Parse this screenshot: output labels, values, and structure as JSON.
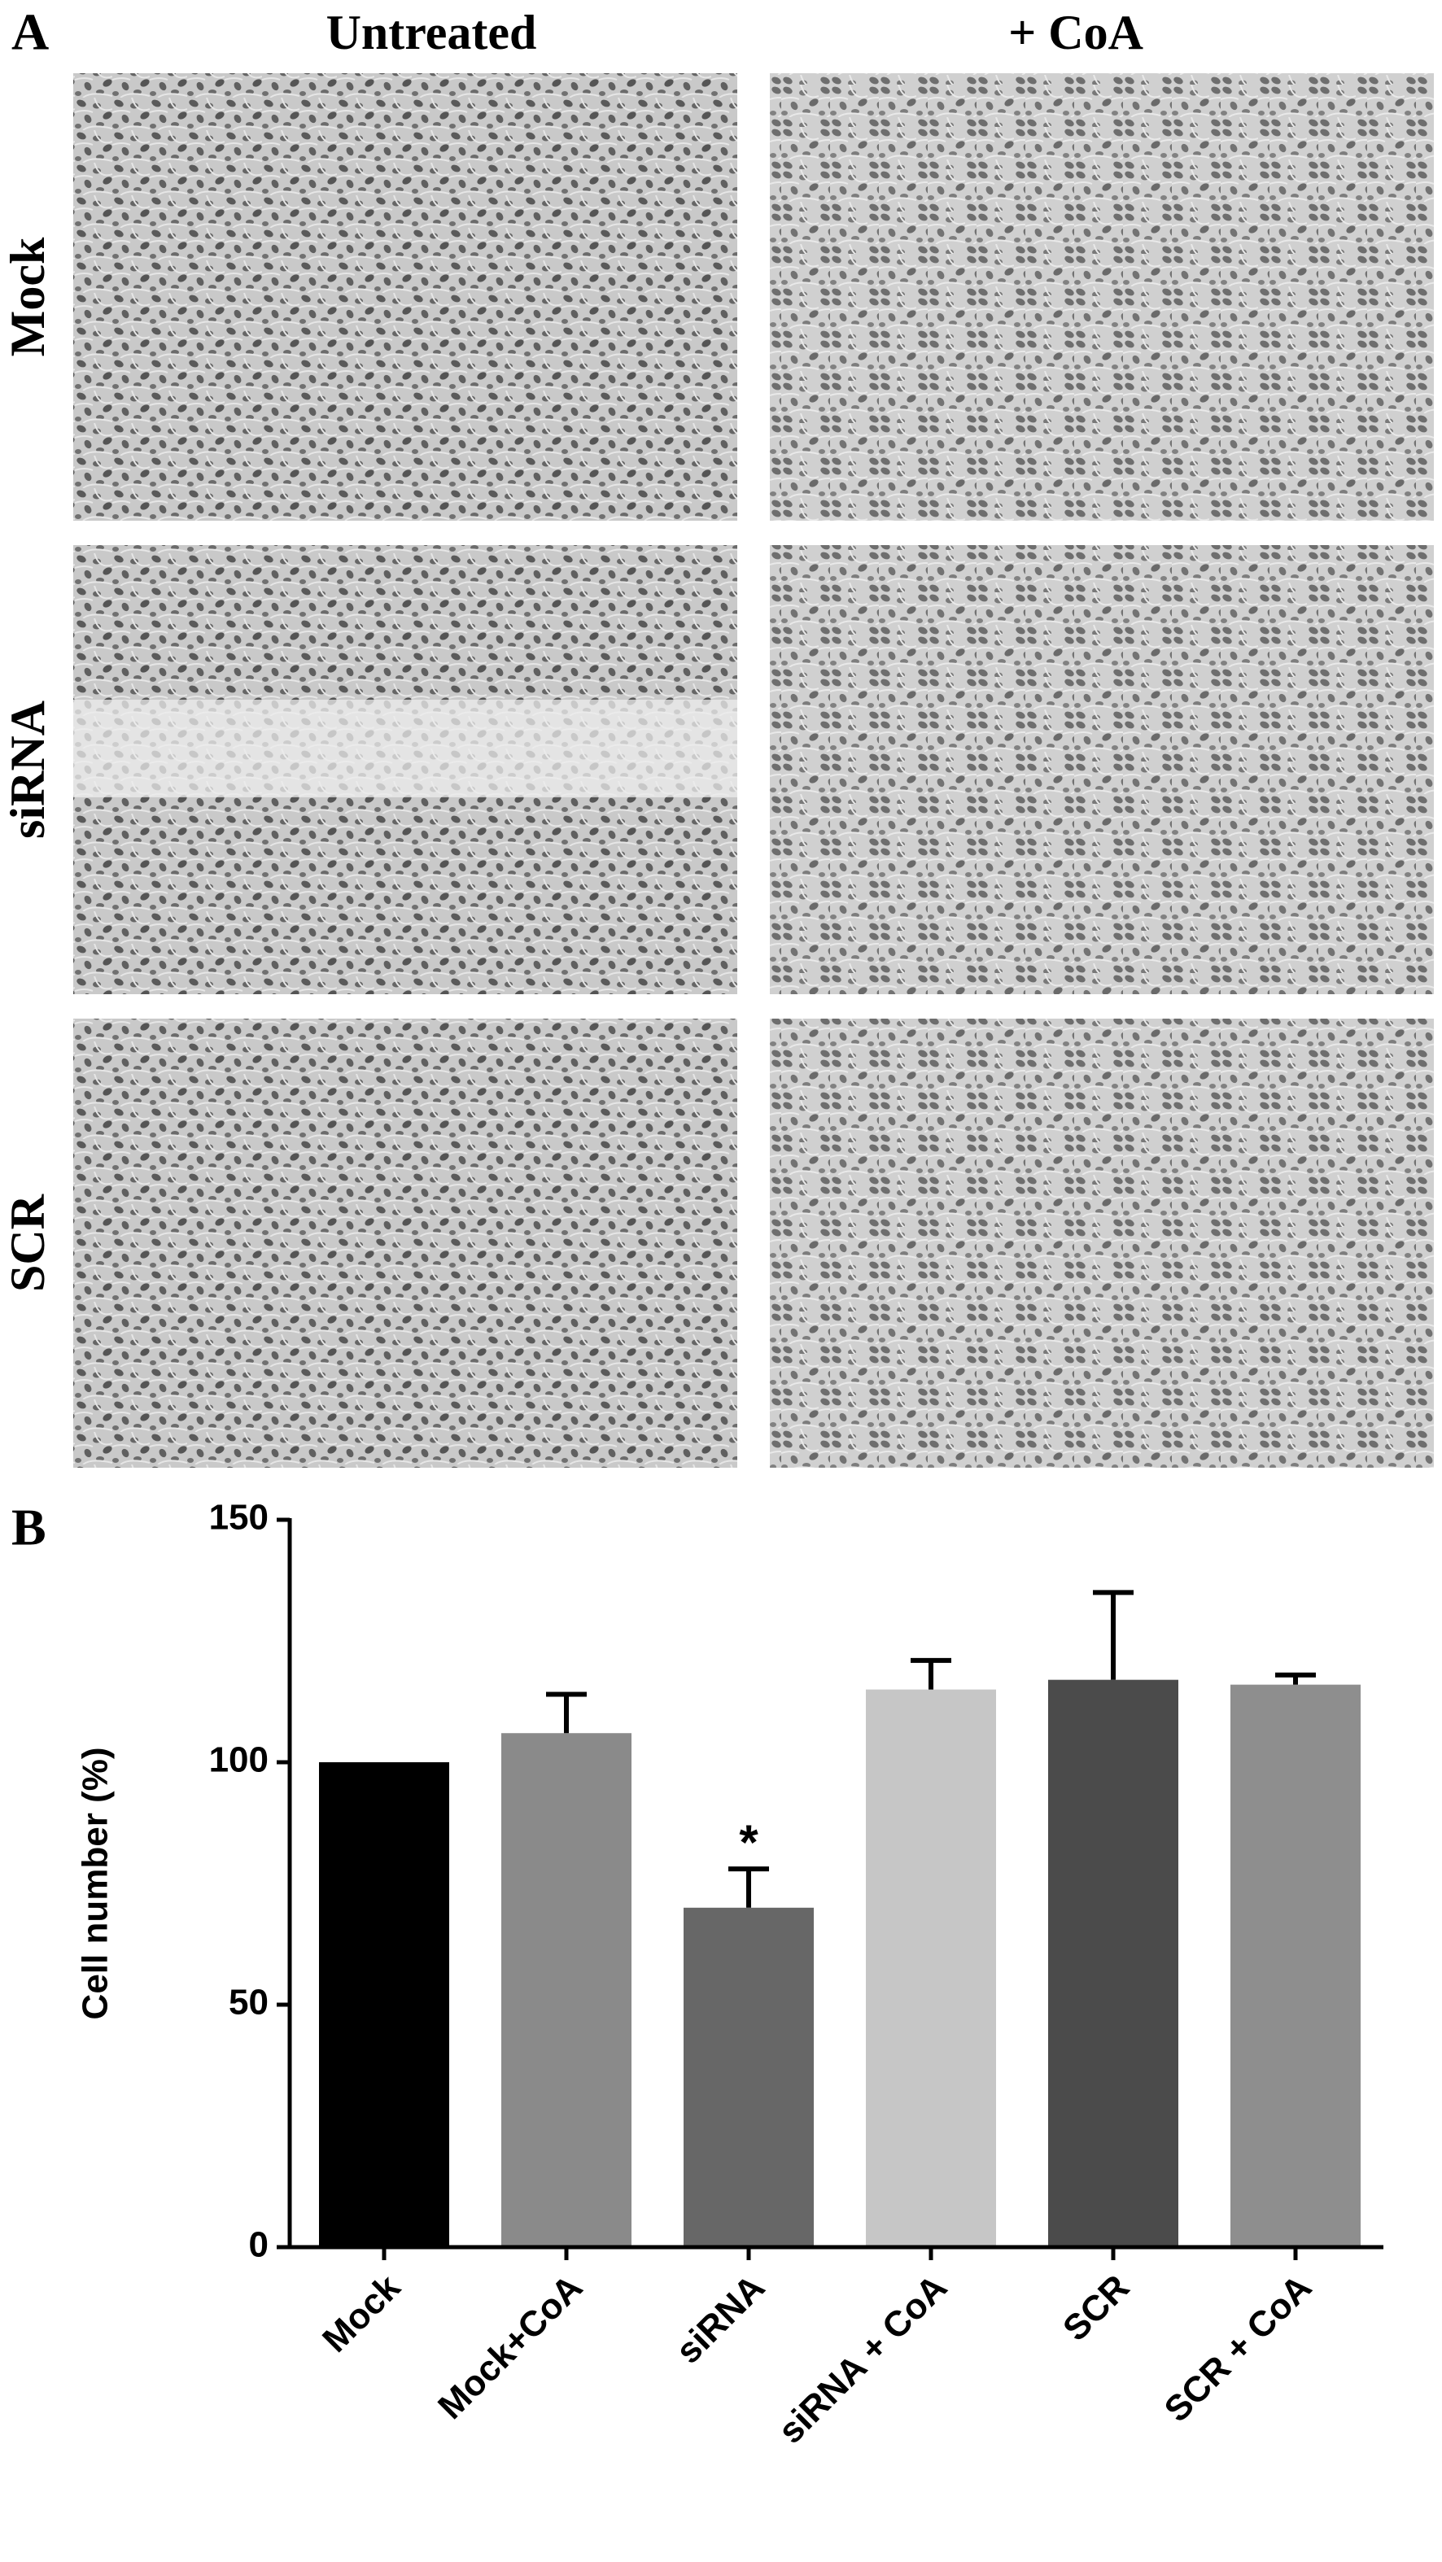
{
  "panel_a": {
    "label": "A",
    "columns": [
      "Untreated",
      "+ CoA"
    ],
    "rows": [
      "Mock",
      "siRNA",
      "SCR"
    ]
  },
  "chart_data": {
    "type": "bar",
    "label": "B",
    "y_label": "Cell number (%)",
    "categories": [
      "Mock",
      "Mock+CoA",
      "siRNA",
      "siRNA + CoA",
      "SCR",
      "SCR + CoA"
    ],
    "values": [
      100,
      106,
      70,
      115,
      117,
      116
    ],
    "errors": [
      0,
      8,
      8,
      6,
      18,
      2
    ],
    "colors": [
      "#000000",
      "#8a8a8a",
      "#676767",
      "#c6c6c6",
      "#4b4b4b",
      "#8e8e8e"
    ],
    "annotations": [
      {
        "category": 2,
        "text": "*"
      }
    ],
    "ylim": [
      0,
      150
    ],
    "yticks": [
      0,
      50,
      100,
      150
    ],
    "grid": false
  }
}
